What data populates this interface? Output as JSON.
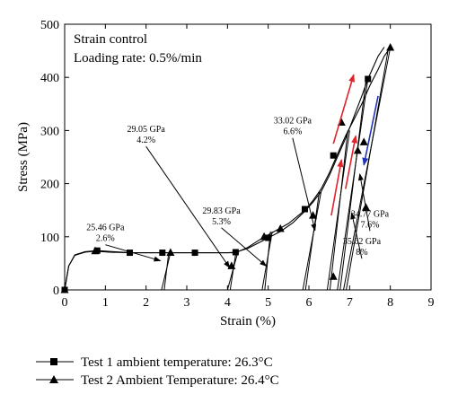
{
  "chart_data": {
    "type": "line",
    "xlabel": "Strain (%)",
    "ylabel": "Stress (MPa)",
    "xlim": [
      0,
      9
    ],
    "ylim": [
      0,
      500
    ],
    "x_ticks": [
      0,
      1,
      2,
      3,
      4,
      5,
      6,
      7,
      8,
      9
    ],
    "y_ticks": [
      0,
      100,
      200,
      300,
      400,
      500
    ],
    "textbox": [
      "Strain control",
      "Loading rate: 0.5%/min"
    ],
    "legend_position": "bottom (below chart)",
    "series": [
      {
        "name": "Test 1 ambient temperature: 26.3°C",
        "marker": "square",
        "color": "#000000",
        "curve": [
          [
            0,
            0
          ],
          [
            0.1,
            45
          ],
          [
            0.25,
            66
          ],
          [
            0.5,
            72
          ],
          [
            0.8,
            74
          ],
          [
            1.2,
            72
          ],
          [
            1.6,
            70
          ],
          [
            2.0,
            70
          ],
          [
            2.5,
            70
          ],
          [
            3.0,
            70
          ],
          [
            3.5,
            70
          ],
          [
            4.0,
            70
          ],
          [
            4.2,
            71
          ],
          [
            4.5,
            78
          ],
          [
            4.8,
            90
          ],
          [
            5.0,
            98
          ],
          [
            5.3,
            110
          ],
          [
            5.6,
            126
          ],
          [
            5.9,
            148
          ],
          [
            6.1,
            165
          ],
          [
            6.3,
            185
          ],
          [
            6.5,
            215
          ],
          [
            6.7,
            250
          ],
          [
            6.9,
            285
          ],
          [
            7.1,
            325
          ],
          [
            7.3,
            365
          ],
          [
            7.45,
            397
          ],
          [
            7.7,
            440
          ],
          [
            7.85,
            457
          ]
        ],
        "markers": [
          [
            0,
            0
          ],
          [
            0.8,
            74
          ],
          [
            1.6,
            70
          ],
          [
            2.4,
            70
          ],
          [
            3.2,
            70
          ],
          [
            4.2,
            71
          ],
          [
            5.0,
            98
          ],
          [
            5.9,
            152
          ],
          [
            6.6,
            253
          ],
          [
            7.45,
            397
          ]
        ]
      },
      {
        "name": "Test 2 Ambient Temperature: 26.4°C",
        "marker": "triangle",
        "color": "#000000",
        "curve": [
          [
            0,
            0
          ],
          [
            0.1,
            45
          ],
          [
            0.25,
            65
          ],
          [
            0.5,
            71
          ],
          [
            0.75,
            73
          ],
          [
            1.1,
            71
          ],
          [
            1.6,
            70
          ],
          [
            2.0,
            70
          ],
          [
            2.5,
            70
          ],
          [
            3.0,
            70
          ],
          [
            3.5,
            70
          ],
          [
            4.0,
            70
          ],
          [
            4.2,
            70
          ],
          [
            4.5,
            80
          ],
          [
            4.8,
            95
          ],
          [
            5.1,
            108
          ],
          [
            5.5,
            125
          ],
          [
            5.9,
            150
          ],
          [
            6.1,
            168
          ],
          [
            6.3,
            190
          ],
          [
            6.5,
            220
          ],
          [
            6.7,
            255
          ],
          [
            6.9,
            290
          ],
          [
            7.1,
            320
          ],
          [
            7.3,
            350
          ],
          [
            7.5,
            385
          ],
          [
            7.7,
            415
          ],
          [
            7.85,
            440
          ],
          [
            8.0,
            456
          ]
        ],
        "markers": [
          [
            0,
            0
          ],
          [
            0.75,
            73
          ],
          [
            2.6,
            70
          ],
          [
            4.1,
            45
          ],
          [
            4.9,
            100
          ],
          [
            5.3,
            115
          ],
          [
            6.1,
            140
          ],
          [
            6.6,
            25
          ],
          [
            6.8,
            315
          ],
          [
            7.2,
            262
          ],
          [
            7.35,
            278
          ],
          [
            7.4,
            155
          ],
          [
            8.0,
            456
          ]
        ]
      }
    ],
    "unload_reload_loops": [
      {
        "top": [
          2.6,
          70
        ],
        "bottom": [
          2.38,
          0
        ]
      },
      {
        "top": [
          4.25,
          70
        ],
        "bottom": [
          4.0,
          0
        ]
      },
      {
        "top": [
          5.1,
          110
        ],
        "bottom": [
          4.85,
          0
        ]
      },
      {
        "top": [
          6.3,
          185
        ],
        "bottom": [
          5.85,
          0
        ]
      },
      {
        "top": [
          7.0,
          300
        ],
        "bottom": [
          6.45,
          0
        ]
      },
      {
        "top": [
          7.45,
          397
        ],
        "bottom": [
          6.7,
          0
        ]
      },
      {
        "top": [
          8.0,
          456
        ],
        "bottom": [
          6.85,
          0
        ]
      }
    ],
    "annotations": [
      {
        "text": [
          "25.46 GPa",
          "2.6%"
        ],
        "label_at": [
          1.0,
          112
        ],
        "arrow_to": [
          2.35,
          55
        ]
      },
      {
        "text": [
          "29.05 GPa",
          "4.2%"
        ],
        "label_at": [
          2.0,
          297
        ],
        "arrow_to": [
          4.05,
          42
        ]
      },
      {
        "text": [
          "29.83 GPa",
          "5.3%"
        ],
        "label_at": [
          3.85,
          144
        ],
        "arrow_to": [
          4.95,
          45
        ]
      },
      {
        "text": [
          "33.02 GPa",
          "6.6%"
        ],
        "label_at": [
          5.6,
          313
        ],
        "arrow_to": [
          6.15,
          112
        ]
      },
      {
        "text": [
          "34.77 GPa",
          "7.6%"
        ],
        "label_at": [
          7.5,
          138
        ],
        "arrow_to": [
          7.25,
          218
        ]
      },
      {
        "text": [
          "35.62 GPa",
          "8%"
        ],
        "label_at": [
          7.3,
          86
        ],
        "arrow_to": [
          7.05,
          145
        ]
      }
    ],
    "direction_arrows": [
      {
        "color": "#e0232a",
        "from": [
          6.6,
          275
        ],
        "to": [
          7.1,
          405
        ]
      },
      {
        "color": "#e0232a",
        "from": [
          6.55,
          140
        ],
        "to": [
          6.8,
          245
        ]
      },
      {
        "color": "#e0232a",
        "from": [
          6.9,
          190
        ],
        "to": [
          7.15,
          290
        ]
      },
      {
        "color": "#1f34b8",
        "from": [
          7.7,
          365
        ],
        "to": [
          7.35,
          235
        ]
      }
    ]
  }
}
